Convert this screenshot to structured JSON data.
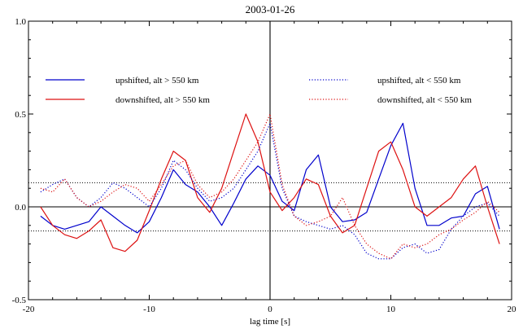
{
  "chart_data": {
    "type": "line",
    "title": "2003-01-26",
    "xlabel": "lag time [s]",
    "ylabel": "",
    "xlim": [
      -20,
      20
    ],
    "ylim": [
      -0.5,
      1.0
    ],
    "xticks": [
      -20,
      -10,
      0,
      10,
      20
    ],
    "xtick_labels": [
      "-20",
      "-10",
      "0",
      "10",
      "20"
    ],
    "yticks": [
      -0.5,
      0.0,
      0.5,
      1.0
    ],
    "ytick_labels": [
      "-0.5",
      "0.0",
      "0.5",
      "1.0"
    ],
    "grid": false,
    "legend_position": "top",
    "reference_lines": [
      {
        "orientation": "horizontal",
        "value": 0.0,
        "style": "solid"
      },
      {
        "orientation": "vertical",
        "value": 0.0,
        "style": "solid"
      },
      {
        "orientation": "horizontal",
        "value": 0.13,
        "style": "dotted"
      },
      {
        "orientation": "horizontal",
        "value": -0.13,
        "style": "dotted"
      }
    ],
    "series": [
      {
        "name": "upshifted, alt > 550 km",
        "color": "#0000cc",
        "dash": "solid",
        "x": [
          -19,
          -18,
          -17,
          -16,
          -15,
          -14,
          -13,
          -12,
          -11,
          -10,
          -9,
          -8,
          -7,
          -6,
          -5,
          -4,
          -3,
          -2,
          -1,
          0,
          1,
          2,
          3,
          4,
          5,
          6,
          7,
          8,
          9,
          10,
          11,
          12,
          13,
          14,
          15,
          16,
          17,
          18,
          19
        ],
        "y": [
          -0.05,
          -0.1,
          -0.12,
          -0.1,
          -0.08,
          0.0,
          -0.05,
          -0.1,
          -0.14,
          -0.08,
          0.05,
          0.2,
          0.12,
          0.08,
          0.0,
          -0.1,
          0.02,
          0.15,
          0.22,
          0.17,
          0.03,
          -0.02,
          0.2,
          0.28,
          0.0,
          -0.08,
          -0.07,
          -0.03,
          0.15,
          0.33,
          0.45,
          0.1,
          -0.1,
          -0.1,
          -0.06,
          -0.05,
          0.07,
          0.11,
          -0.12
        ]
      },
      {
        "name": "downshifted, alt > 550 km",
        "color": "#dd1111",
        "dash": "solid",
        "x": [
          -19,
          -18,
          -17,
          -16,
          -15,
          -14,
          -13,
          -12,
          -11,
          -10,
          -9,
          -8,
          -7,
          -6,
          -5,
          -4,
          -3,
          -2,
          -1,
          0,
          1,
          2,
          3,
          4,
          5,
          6,
          7,
          8,
          9,
          10,
          11,
          12,
          13,
          14,
          15,
          16,
          17,
          18,
          19
        ],
        "y": [
          0.0,
          -0.1,
          -0.15,
          -0.17,
          -0.13,
          -0.07,
          -0.22,
          -0.24,
          -0.18,
          -0.02,
          0.15,
          0.3,
          0.25,
          0.05,
          -0.03,
          0.1,
          0.3,
          0.5,
          0.35,
          0.08,
          -0.02,
          0.05,
          0.15,
          0.12,
          -0.05,
          -0.14,
          -0.1,
          0.1,
          0.3,
          0.35,
          0.2,
          0.0,
          -0.05,
          0.0,
          0.05,
          0.15,
          0.22,
          0.0,
          -0.2
        ]
      },
      {
        "name": "upshifted, alt < 550 km",
        "color": "#0000cc",
        "dash": "dotted",
        "x": [
          -19,
          -18,
          -17,
          -16,
          -15,
          -14,
          -13,
          -12,
          -11,
          -10,
          -9,
          -8,
          -7,
          -6,
          -5,
          -4,
          -3,
          -2,
          -1,
          0,
          1,
          2,
          3,
          4,
          5,
          6,
          7,
          8,
          9,
          10,
          11,
          12,
          13,
          14,
          15,
          16,
          17,
          18,
          19
        ],
        "y": [
          0.08,
          0.12,
          0.15,
          0.05,
          0.0,
          0.05,
          0.13,
          0.1,
          0.05,
          0.0,
          0.1,
          0.25,
          0.2,
          0.1,
          0.03,
          0.05,
          0.1,
          0.2,
          0.3,
          0.45,
          0.1,
          -0.05,
          -0.08,
          -0.1,
          -0.12,
          -0.1,
          -0.15,
          -0.25,
          -0.28,
          -0.28,
          -0.22,
          -0.2,
          -0.25,
          -0.23,
          -0.12,
          -0.05,
          0.0,
          0.02,
          -0.05
        ]
      },
      {
        "name": "downshifted, alt < 550 km",
        "color": "#dd1111",
        "dash": "dotted",
        "x": [
          -19,
          -18,
          -17,
          -16,
          -15,
          -14,
          -13,
          -12,
          -11,
          -10,
          -9,
          -8,
          -7,
          -6,
          -5,
          -4,
          -3,
          -2,
          -1,
          0,
          1,
          2,
          3,
          4,
          5,
          6,
          7,
          8,
          9,
          10,
          11,
          12,
          13,
          14,
          15,
          16,
          17,
          18,
          19
        ],
        "y": [
          0.1,
          0.08,
          0.15,
          0.05,
          0.0,
          0.03,
          0.08,
          0.12,
          0.1,
          0.03,
          0.12,
          0.22,
          0.25,
          0.12,
          0.05,
          0.08,
          0.15,
          0.25,
          0.35,
          0.5,
          0.12,
          -0.05,
          -0.1,
          -0.08,
          -0.05,
          0.05,
          -0.1,
          -0.2,
          -0.25,
          -0.28,
          -0.2,
          -0.22,
          -0.2,
          -0.15,
          -0.12,
          -0.07,
          -0.03,
          0.03,
          -0.03
        ]
      }
    ]
  }
}
